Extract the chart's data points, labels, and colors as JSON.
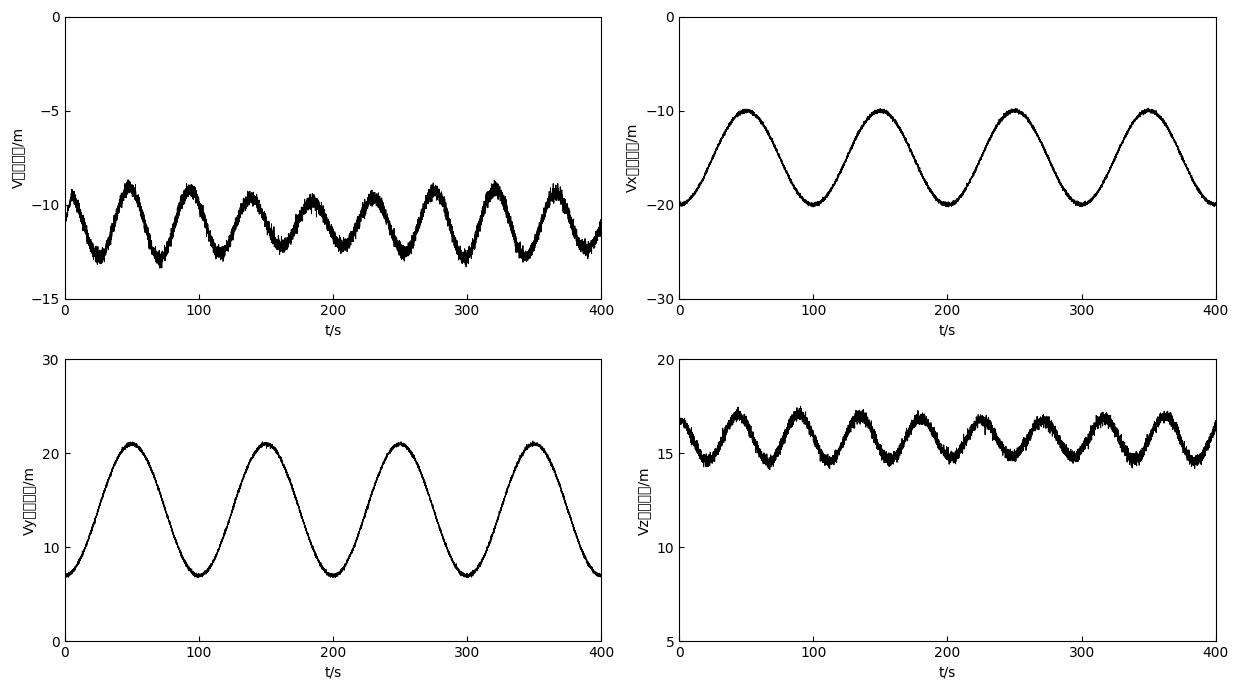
{
  "t_start": 0,
  "t_end": 400,
  "num_points": 8000,
  "subplots": [
    {
      "ylabel": "V速度误差/m",
      "xlabel": "t/s",
      "ylim": [
        -15,
        0
      ],
      "yticks": [
        0,
        -5,
        -10,
        -15
      ],
      "xticks": [
        0,
        100,
        200,
        300,
        400
      ],
      "mean": -11.0,
      "amplitude": 1.5,
      "noise_amp": 0.18,
      "freq": 0.022,
      "phase": 1.2,
      "amp_mod_freq": 0.004,
      "amp_mod_depth": 0.25,
      "startup_end_t": 5,
      "startup_val": -11.0
    },
    {
      "ylabel": "Vx速度误差/m",
      "xlabel": "t/s",
      "ylim": [
        -30,
        0
      ],
      "yticks": [
        0,
        -10,
        -20,
        -30
      ],
      "xticks": [
        0,
        100,
        200,
        300,
        400
      ],
      "mean": -15.0,
      "amplitude": 5.0,
      "noise_amp": 0.1,
      "freq": 0.01,
      "phase": -1.5708,
      "amp_mod_freq": 0,
      "amp_mod_depth": 0,
      "startup_end_t": 0,
      "startup_val": -20.0
    },
    {
      "ylabel": "Vy速度误差/m",
      "xlabel": "t/s",
      "ylim": [
        0,
        30
      ],
      "yticks": [
        0,
        10,
        20,
        30
      ],
      "xticks": [
        0,
        100,
        200,
        300,
        400
      ],
      "mean": 14.0,
      "amplitude": 7.0,
      "noise_amp": 0.1,
      "freq": 0.01,
      "phase": -1.5708,
      "amp_mod_freq": 0,
      "amp_mod_depth": 0,
      "startup_end_t": 0,
      "startup_val": 7.0
    },
    {
      "ylabel": "Vz速度误差/m",
      "xlabel": "t/s",
      "ylim": [
        5,
        20
      ],
      "yticks": [
        5,
        10,
        15,
        20
      ],
      "xticks": [
        0,
        100,
        200,
        300,
        400
      ],
      "mean": 15.8,
      "amplitude": 1.1,
      "noise_amp": 0.15,
      "freq": 0.022,
      "phase": 1.8,
      "amp_mod_freq": 0.003,
      "amp_mod_depth": 0.15,
      "startup_end_t": 3,
      "startup_val": 16.8
    }
  ],
  "line_color": "#000000",
  "line_width": 0.7,
  "bg_color": "#ffffff",
  "tick_fontsize": 10,
  "label_fontsize": 10,
  "figsize": [
    12.4,
    6.91
  ],
  "dpi": 100
}
